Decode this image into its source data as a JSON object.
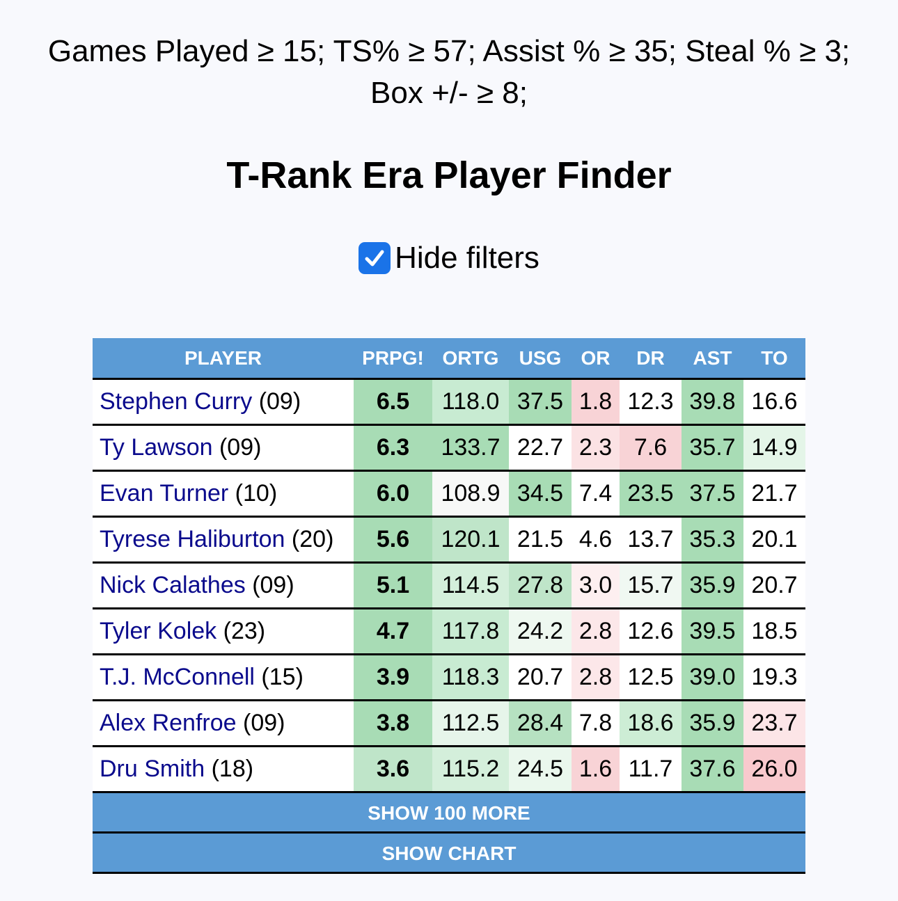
{
  "filters_line1": "Games Played ≥ 15; TS% ≥ 57; Assist % ≥ 35; Steal % ≥ 3;",
  "filters_line2": "Box +/- ≥ 8;",
  "title": "T-Rank Era Player Finder",
  "hide_filters": {
    "label": "Hide filters",
    "checked": true
  },
  "table": {
    "columns": [
      "PLAYER",
      "PRPG!",
      "ORTG",
      "USG",
      "OR",
      "DR",
      "AST",
      "TO"
    ],
    "rows": [
      {
        "name": "Stephen Curry",
        "year": "(09)",
        "prpg": "6.5",
        "ortg": "118.0",
        "usg": "37.5",
        "or": "1.8",
        "dr": "12.3",
        "ast": "39.8",
        "to": "16.6",
        "colors": {
          "prpg": "#a8dcb5",
          "ortg": "#c8ebd2",
          "usg": "#a8dcb5",
          "or": "#f8d3d6",
          "dr": "#ffffff",
          "ast": "#a8dcb5",
          "to": "#ffffff"
        }
      },
      {
        "name": "Ty Lawson",
        "year": "(09)",
        "prpg": "6.3",
        "ortg": "133.7",
        "usg": "22.7",
        "or": "2.3",
        "dr": "7.6",
        "ast": "35.7",
        "to": "14.9",
        "colors": {
          "prpg": "#a8dcb5",
          "ortg": "#a8dcb5",
          "usg": "#ffffff",
          "or": "#fbe2e4",
          "dr": "#f8d3d6",
          "ast": "#a8dcb5",
          "to": "#e4f5e8"
        }
      },
      {
        "name": "Evan Turner",
        "year": "(10)",
        "prpg": "6.0",
        "ortg": "108.9",
        "usg": "34.5",
        "or": "7.4",
        "dr": "23.5",
        "ast": "37.5",
        "to": "21.7",
        "colors": {
          "prpg": "#a8dcb5",
          "ortg": "#f7f8f7",
          "usg": "#a8dcb5",
          "or": "#ffffff",
          "dr": "#a8dcb5",
          "ast": "#a8dcb5",
          "to": "#ffffff"
        }
      },
      {
        "name": "Tyrese Haliburton",
        "year": "(20)",
        "prpg": "5.6",
        "ortg": "120.1",
        "usg": "21.5",
        "or": "4.6",
        "dr": "13.7",
        "ast": "35.3",
        "to": "20.1",
        "colors": {
          "prpg": "#a8dcb5",
          "ortg": "#bfe5c9",
          "usg": "#ffffff",
          "or": "#ffffff",
          "dr": "#ffffff",
          "ast": "#a8dcb5",
          "to": "#ffffff"
        }
      },
      {
        "name": "Nick Calathes",
        "year": "(09)",
        "prpg": "5.1",
        "ortg": "114.5",
        "usg": "27.8",
        "or": "3.0",
        "dr": "15.7",
        "ast": "35.9",
        "to": "20.7",
        "colors": {
          "prpg": "#a8dcb5",
          "ortg": "#d4efdb",
          "usg": "#bfe5c9",
          "or": "#fdeff0",
          "dr": "#f0f8f2",
          "ast": "#a8dcb5",
          "to": "#ffffff"
        }
      },
      {
        "name": "Tyler Kolek",
        "year": "(23)",
        "prpg": "4.7",
        "ortg": "117.8",
        "usg": "24.2",
        "or": "2.8",
        "dr": "12.6",
        "ast": "39.5",
        "to": "18.5",
        "colors": {
          "prpg": "#a8dcb5",
          "ortg": "#c8ebd2",
          "usg": "#eef8f0",
          "or": "#fce7e9",
          "dr": "#ffffff",
          "ast": "#a8dcb5",
          "to": "#ffffff"
        }
      },
      {
        "name": "T.J. McConnell",
        "year": "(15)",
        "prpg": "3.9",
        "ortg": "118.3",
        "usg": "20.7",
        "or": "2.8",
        "dr": "12.5",
        "ast": "39.0",
        "to": "19.3",
        "colors": {
          "prpg": "#a8dcb5",
          "ortg": "#c8ebd2",
          "usg": "#ffffff",
          "or": "#fce7e9",
          "dr": "#ffffff",
          "ast": "#a8dcb5",
          "to": "#ffffff"
        }
      },
      {
        "name": "Alex Renfroe",
        "year": "(09)",
        "prpg": "3.8",
        "ortg": "112.5",
        "usg": "28.4",
        "or": "7.8",
        "dr": "18.6",
        "ast": "35.9",
        "to": "23.7",
        "colors": {
          "prpg": "#a8dcb5",
          "ortg": "#e6f5ea",
          "usg": "#b6e1c1",
          "or": "#ffffff",
          "dr": "#cdedd5",
          "ast": "#a8dcb5",
          "to": "#fce5e7"
        }
      },
      {
        "name": "Dru Smith",
        "year": "(18)",
        "prpg": "3.6",
        "ortg": "115.2",
        "usg": "24.5",
        "or": "1.6",
        "dr": "11.7",
        "ast": "37.6",
        "to": "26.0",
        "colors": {
          "prpg": "#bfe5c9",
          "ortg": "#d4efdb",
          "usg": "#eaf7ed",
          "or": "#f8d3d6",
          "dr": "#ffffff",
          "ast": "#a8dcb5",
          "to": "#f8c9cd"
        }
      }
    ]
  },
  "buttons": {
    "show_more": "SHOW 100 MORE",
    "show_chart": "SHOW CHART"
  }
}
